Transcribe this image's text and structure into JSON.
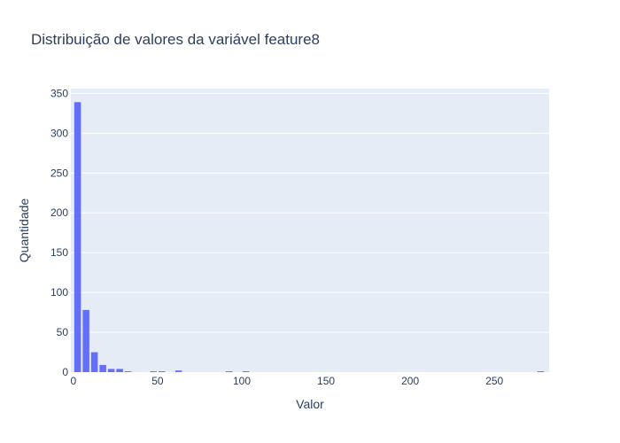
{
  "chart_data": {
    "type": "bar",
    "title": "Distribuição de valores da variável feature8",
    "xlabel": "Valor",
    "ylabel": "Quantidade",
    "bin_width": 5,
    "x_bin_starts": [
      0,
      5,
      10,
      15,
      20,
      25,
      30,
      35,
      40,
      45,
      50,
      55,
      60,
      65,
      70,
      75,
      80,
      85,
      90,
      95,
      100,
      275
    ],
    "values": [
      339,
      78,
      25,
      9,
      4,
      4,
      1,
      0,
      0,
      1,
      1,
      0,
      2,
      0,
      0,
      0,
      0,
      0,
      1,
      0,
      1,
      1
    ],
    "xlim": [
      -1.5,
      282.5
    ],
    "ylim": [
      0,
      356
    ],
    "x_ticks": [
      0,
      50,
      100,
      150,
      200,
      250
    ],
    "y_ticks": [
      0,
      50,
      100,
      150,
      200,
      250,
      300,
      350
    ],
    "grid": true,
    "colors": {
      "bar": "#636efa",
      "plot_bg": "#e5ecf6",
      "grid": "#ffffff",
      "text": "#2a3f5f"
    }
  }
}
